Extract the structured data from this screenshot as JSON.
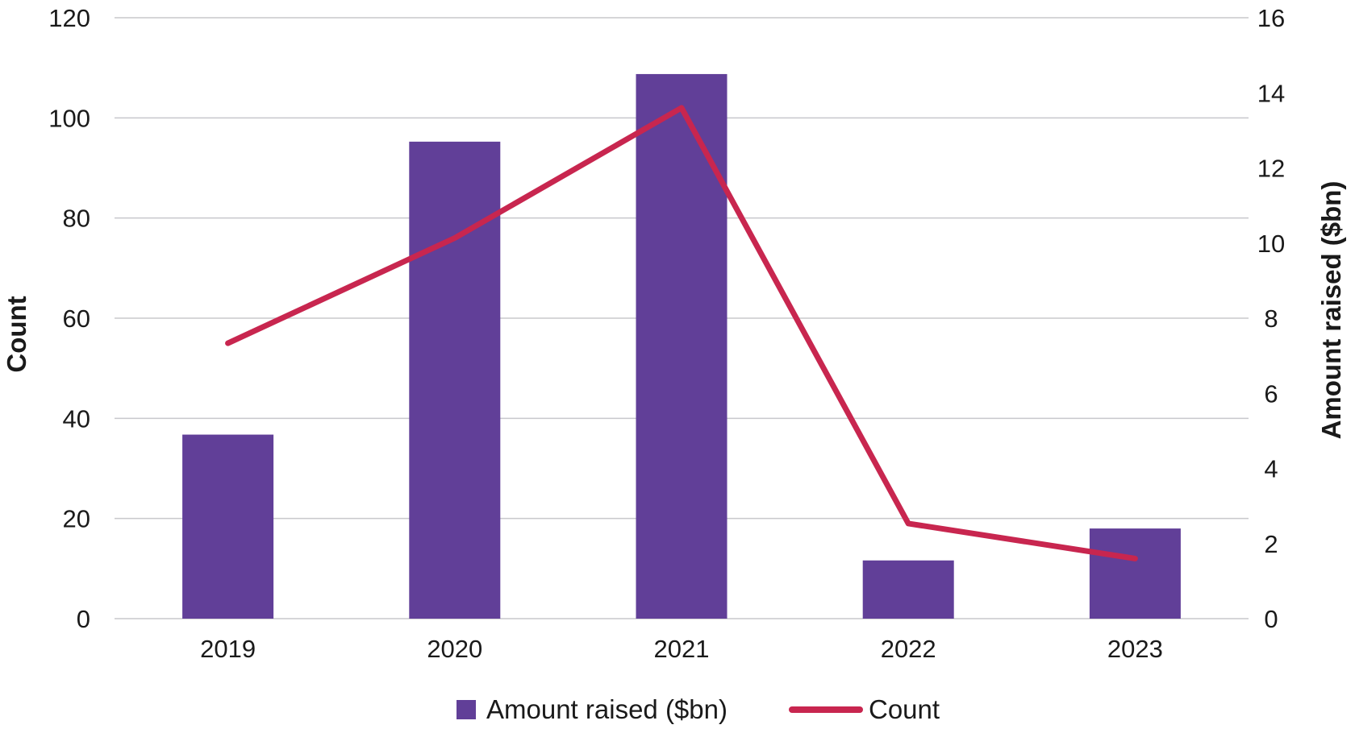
{
  "chart_data": {
    "type": "bar",
    "categories": [
      "2019",
      "2020",
      "2021",
      "2022",
      "2023"
    ],
    "series": [
      {
        "name": "Amount raised ($bn)",
        "kind": "bar",
        "axis": "right",
        "color": "#613f98",
        "values": [
          4.9,
          12.7,
          14.5,
          1.55,
          2.4
        ]
      },
      {
        "name": "Count",
        "kind": "line",
        "axis": "left",
        "color": "#c8264f",
        "values": [
          55,
          76,
          102,
          19,
          12
        ]
      }
    ],
    "y_left": {
      "label": "Count",
      "ylim": [
        0,
        120
      ],
      "ticks": [
        "0",
        "20",
        "40",
        "60",
        "80",
        "100",
        "120"
      ]
    },
    "y_right": {
      "label": "Amount raised ($bn)",
      "ylim": [
        0,
        16
      ],
      "ticks": [
        "0",
        "2",
        "4",
        "6",
        "8",
        "10",
        "12",
        "14",
        "16"
      ]
    },
    "grid": true,
    "gridColor": "#c8c8cc",
    "legend": {
      "position": "bottom",
      "items": [
        {
          "label": "Amount raised ($bn)",
          "marker": "square",
          "color": "#613f98"
        },
        {
          "label": "Count",
          "marker": "line",
          "color": "#c8264f"
        }
      ]
    }
  }
}
